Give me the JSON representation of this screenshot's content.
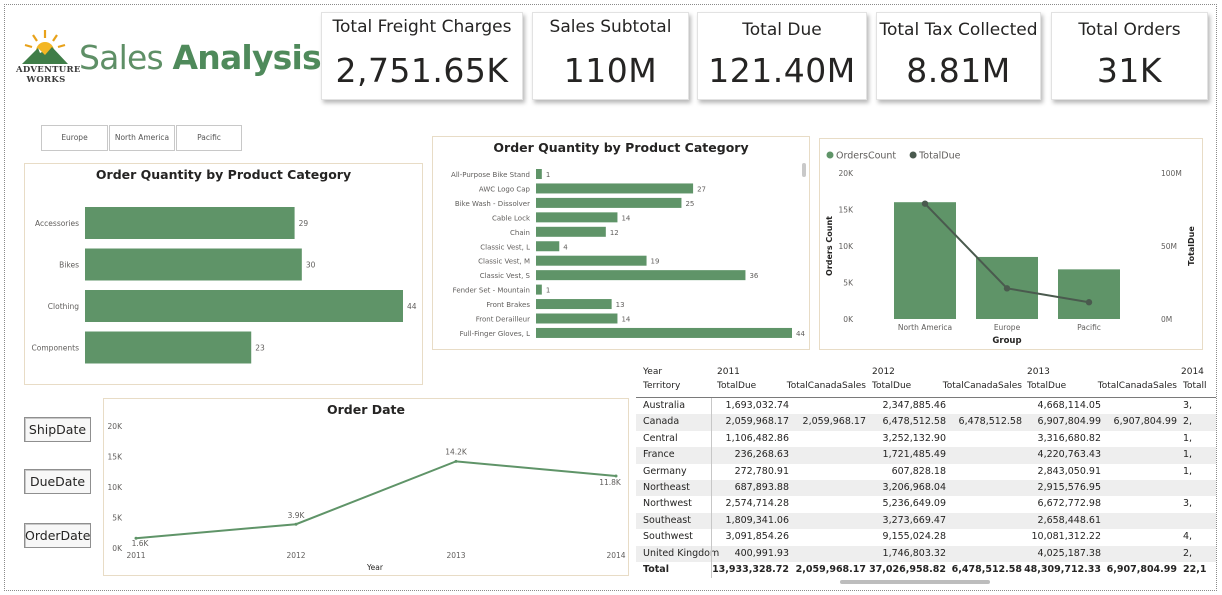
{
  "header": {
    "logo_line1": "Adventure",
    "logo_line2": "Works",
    "title_light": "Sales ",
    "title_bold": "Analysis"
  },
  "kpis": [
    {
      "label": "Total Freight Charges",
      "value": "2,751.65K"
    },
    {
      "label": "Sales Subtotal",
      "value": "110M"
    },
    {
      "label": "Total Due",
      "value": "121.40M"
    },
    {
      "label": "Total Tax Collected",
      "value": "8.81M"
    },
    {
      "label": "Total Orders",
      "value": "31K"
    }
  ],
  "region_slicer": [
    "Europe",
    "North America",
    "Pacific"
  ],
  "date_buttons": [
    "ShipDate",
    "DueDate",
    "OrderDate"
  ],
  "colors": {
    "bar": "#5f9468",
    "line": "#4a5a4e",
    "accent": "#4f8a5b"
  },
  "chart_data": [
    {
      "type": "bar",
      "title": "Order Quantity by Product Category",
      "orientation": "horizontal",
      "categories": [
        "Accessories",
        "Bikes",
        "Clothing",
        "Components"
      ],
      "values": [
        29,
        30,
        44,
        23
      ],
      "xlim": [
        0,
        44
      ]
    },
    {
      "type": "bar",
      "title": "Order Quantity by Product Category",
      "orientation": "horizontal",
      "categories": [
        "All-Purpose Bike Stand",
        "AWC Logo Cap",
        "Bike Wash - Dissolver",
        "Cable Lock",
        "Chain",
        "Classic Vest, L",
        "Classic Vest, M",
        "Classic Vest, S",
        "Fender Set - Mountain",
        "Front Brakes",
        "Front Derailleur",
        "Full-Finger Gloves, L"
      ],
      "values": [
        1,
        27,
        25,
        14,
        12,
        4,
        19,
        36,
        1,
        13,
        14,
        44
      ],
      "xlim": [
        0,
        44
      ]
    },
    {
      "type": "bar",
      "title": "",
      "combo": true,
      "legend": [
        "OrdersCount",
        "TotalDue"
      ],
      "legend_position": "top-left",
      "xlabel": "Group",
      "ylabel": "Orders Count",
      "y2label": "TotalDue",
      "categories": [
        "North America",
        "Europe",
        "Pacific"
      ],
      "series": [
        {
          "name": "OrdersCount",
          "type": "bar",
          "values": [
            16000,
            8500,
            6800
          ]
        },
        {
          "name": "TotalDue",
          "type": "line",
          "axis": "secondary",
          "values": [
            79000000,
            21000000,
            11500000
          ]
        }
      ],
      "y_ticks": [
        "0K",
        "5K",
        "10K",
        "15K",
        "20K"
      ],
      "ylim": [
        0,
        20000
      ],
      "y2_ticks": [
        "0M",
        "50M",
        "100M"
      ],
      "y2lim": [
        0,
        100000000
      ]
    },
    {
      "type": "line",
      "title": "Order Date",
      "xlabel": "Year",
      "x": [
        "2011",
        "2012",
        "2013",
        "2014"
      ],
      "values": [
        1600,
        3900,
        14200,
        11800
      ],
      "data_labels": [
        "1.6K",
        "3.9K",
        "14.2K",
        "11.8K"
      ],
      "y_ticks": [
        "0K",
        "5K",
        "10K",
        "15K",
        "20K"
      ],
      "ylim": [
        0,
        20000
      ]
    }
  ],
  "matrix": {
    "header_row1_label": "Year",
    "header_row2_label": "Territory",
    "years": [
      "2011",
      "2012",
      "2013",
      "2014"
    ],
    "col_headers": [
      "TotalDue",
      "TotalCanadaSales",
      "TotalDue",
      "TotalCanadaSales",
      "TotalDue",
      "TotalCanadaSales",
      "Totall"
    ],
    "rows": [
      {
        "territory": "Australia",
        "cells": [
          "1,693,032.74",
          "",
          "2,347,885.46",
          "",
          "4,668,114.05",
          "",
          "3,"
        ]
      },
      {
        "territory": "Canada",
        "cells": [
          "2,059,968.17",
          "2,059,968.17",
          "6,478,512.58",
          "6,478,512.58",
          "6,907,804.99",
          "6,907,804.99",
          "2,"
        ]
      },
      {
        "territory": "Central",
        "cells": [
          "1,106,482.86",
          "",
          "3,252,132.90",
          "",
          "3,316,680.82",
          "",
          "1,"
        ]
      },
      {
        "territory": "France",
        "cells": [
          "236,268.63",
          "",
          "1,721,485.49",
          "",
          "4,220,763.43",
          "",
          "1,"
        ]
      },
      {
        "territory": "Germany",
        "cells": [
          "272,780.91",
          "",
          "607,828.18",
          "",
          "2,843,050.91",
          "",
          "1,"
        ]
      },
      {
        "territory": "Northeast",
        "cells": [
          "687,893.88",
          "",
          "3,206,968.04",
          "",
          "2,915,576.95",
          "",
          ""
        ]
      },
      {
        "territory": "Northwest",
        "cells": [
          "2,574,714.28",
          "",
          "5,236,649.09",
          "",
          "6,672,772.98",
          "",
          "3,"
        ]
      },
      {
        "territory": "Southeast",
        "cells": [
          "1,809,341.06",
          "",
          "3,273,669.47",
          "",
          "2,658,448.61",
          "",
          ""
        ]
      },
      {
        "territory": "Southwest",
        "cells": [
          "3,091,854.26",
          "",
          "9,155,024.28",
          "",
          "10,081,312.22",
          "",
          "4,"
        ]
      },
      {
        "territory": "United Kingdom",
        "cells": [
          "400,991.93",
          "",
          "1,746,803.32",
          "",
          "4,025,187.38",
          "",
          "2,"
        ]
      }
    ],
    "total_label": "Total",
    "total_cells": [
      "13,933,328.72",
      "2,059,968.17",
      "37,026,958.82",
      "6,478,512.58",
      "48,309,712.33",
      "6,907,804.99",
      "22,1"
    ]
  }
}
